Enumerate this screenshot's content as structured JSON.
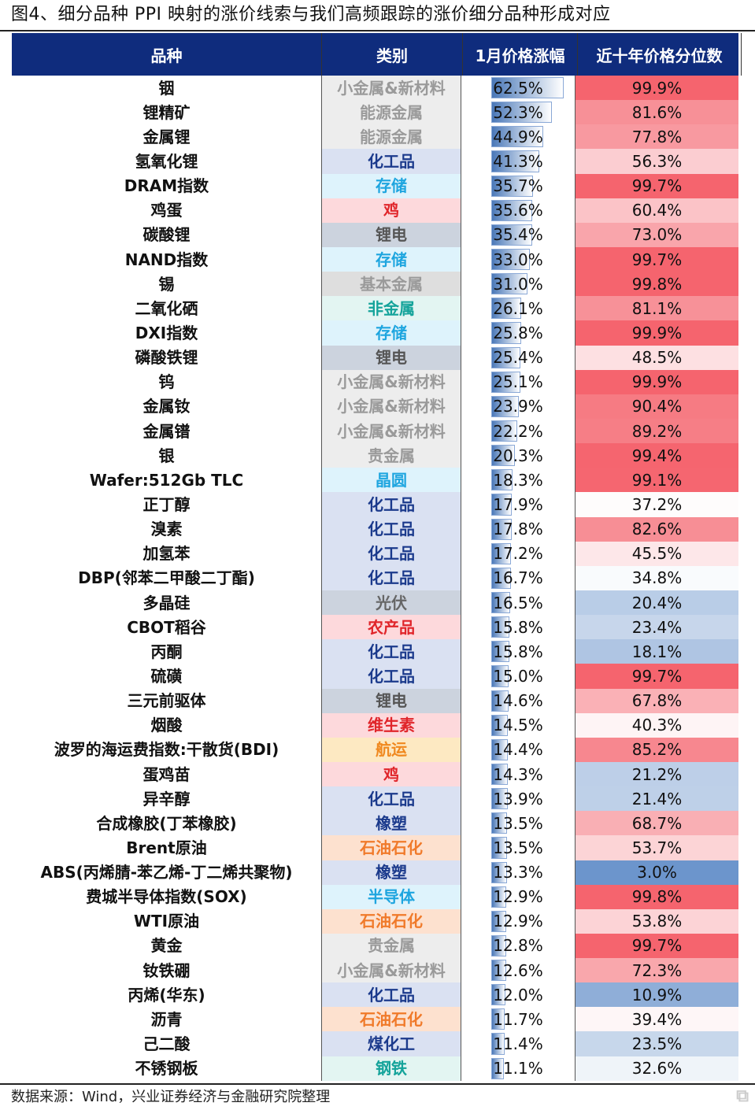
{
  "title": "图4、细分品种 PPI 映射的涨价线索与我们高频跟踪的涨价细分品种形成对应",
  "source": "数据来源：Wind，兴业证券经济与金融研究院整理",
  "logo": "格隆汇",
  "category_styles": {
    "小金属&新材料": [
      "#9a9a9a",
      "#ededed"
    ],
    "能源金属": [
      "#9a9a9a",
      "#ededed"
    ],
    "化工品": [
      "#1b3a8c",
      "#dae1f2"
    ],
    "存储": [
      "#1ea5df",
      "#def3fc"
    ],
    "鸡": [
      "#e0252a",
      "#fdd9dc"
    ],
    "锂电": [
      "#555555",
      "#ccd3de"
    ],
    "基本金属": [
      "#9a9a9a",
      "#dedede"
    ],
    "非金属": [
      "#14a39a",
      "#e3f5f2"
    ],
    "贵金属": [
      "#9a9a9a",
      "#ededed"
    ],
    "晶圆": [
      "#1ea5df",
      "#def3fc"
    ],
    "光伏": [
      "#666666",
      "#ccd3de"
    ],
    "农产品": [
      "#e0252a",
      "#fdd9dc"
    ],
    "维生素": [
      "#e0252a",
      "#fdd9dc"
    ],
    "航运": [
      "#f0891f",
      "#fde9c2"
    ],
    "橡塑": [
      "#1b3a8c",
      "#dae1f2"
    ],
    "石油石化": [
      "#f07a2a",
      "#fde1cf"
    ],
    "半导体": [
      "#1ea5df",
      "#def3fc"
    ],
    "煤化工": [
      "#1b3a8c",
      "#dae1f2"
    ],
    "钢铁": [
      "#14a39a",
      "#e3f5f2"
    ]
  },
  "chart_data": {
    "type": "table",
    "columns": [
      "品种",
      "类别",
      "1月价格涨幅",
      "近十年价格分位数"
    ],
    "rows": [
      [
        "铟",
        "小金属&新材料",
        62.5,
        99.9
      ],
      [
        "锂精矿",
        "能源金属",
        52.3,
        81.6
      ],
      [
        "金属锂",
        "能源金属",
        44.9,
        77.8
      ],
      [
        "氢氧化锂",
        "化工品",
        41.3,
        56.3
      ],
      [
        "DRAM指数",
        "存储",
        35.7,
        99.7
      ],
      [
        "鸡蛋",
        "鸡",
        35.6,
        60.4
      ],
      [
        "碳酸锂",
        "锂电",
        35.4,
        73.0
      ],
      [
        "NAND指数",
        "存储",
        33.0,
        99.7
      ],
      [
        "锡",
        "基本金属",
        31.0,
        99.8
      ],
      [
        "二氧化硒",
        "非金属",
        26.1,
        81.1
      ],
      [
        "DXI指数",
        "存储",
        25.8,
        99.9
      ],
      [
        "磷酸铁锂",
        "锂电",
        25.4,
        48.5
      ],
      [
        "钨",
        "小金属&新材料",
        25.1,
        99.9
      ],
      [
        "金属钕",
        "小金属&新材料",
        23.9,
        90.4
      ],
      [
        "金属镨",
        "小金属&新材料",
        22.2,
        89.2
      ],
      [
        "银",
        "贵金属",
        20.3,
        99.4
      ],
      [
        "Wafer:512Gb TLC",
        "晶圆",
        18.3,
        99.1
      ],
      [
        "正丁醇",
        "化工品",
        17.9,
        37.2
      ],
      [
        "溴素",
        "化工品",
        17.8,
        82.6
      ],
      [
        "加氢苯",
        "化工品",
        17.2,
        45.5
      ],
      [
        "DBP(邻苯二甲酸二丁酯)",
        "化工品",
        16.7,
        34.8
      ],
      [
        "多晶硅",
        "光伏",
        16.5,
        20.4
      ],
      [
        "CBOT稻谷",
        "农产品",
        15.8,
        23.4
      ],
      [
        "丙酮",
        "化工品",
        15.8,
        18.1
      ],
      [
        "硫磺",
        "化工品",
        15.0,
        99.7
      ],
      [
        "三元前驱体",
        "锂电",
        14.6,
        67.8
      ],
      [
        "烟酸",
        "维生素",
        14.5,
        40.3
      ],
      [
        "波罗的海运费指数:干散货(BDI)",
        "航运",
        14.4,
        85.2
      ],
      [
        "蛋鸡苗",
        "鸡",
        14.3,
        21.2
      ],
      [
        "异辛醇",
        "化工品",
        13.9,
        21.4
      ],
      [
        "合成橡胶(丁苯橡胶)",
        "橡塑",
        13.5,
        68.7
      ],
      [
        "Brent原油",
        "石油石化",
        13.5,
        53.7
      ],
      [
        "ABS(丙烯腈-苯乙烯-丁二烯共聚物)",
        "橡塑",
        13.3,
        3.0
      ],
      [
        "费城半导体指数(SOX)",
        "半导体",
        12.9,
        99.8
      ],
      [
        "WTI原油",
        "石油石化",
        12.9,
        53.8
      ],
      [
        "黄金",
        "贵金属",
        12.8,
        99.7
      ],
      [
        "钕铁硼",
        "小金属&新材料",
        12.6,
        72.3
      ],
      [
        "丙烯(华东)",
        "化工品",
        12.0,
        10.9
      ],
      [
        "沥青",
        "石油石化",
        11.7,
        39.4
      ],
      [
        "己二酸",
        "煤化工",
        11.4,
        23.5
      ],
      [
        "不锈钢板",
        "钢铁",
        11.1,
        32.6
      ]
    ]
  }
}
